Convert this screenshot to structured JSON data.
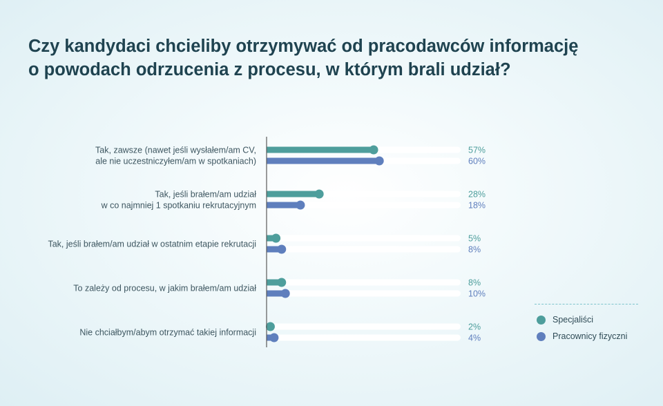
{
  "title_lines": [
    "Czy kandydaci chcieliby otrzymywać od pracodawców informację",
    "o powodach odrzucenia z procesu, w którym brali udział?"
  ],
  "colors": {
    "specjalisci": "#4e9e9c",
    "pracownicy": "#5f7fbd",
    "track": "#ffffff",
    "axis": "#5a5a5a"
  },
  "chart_data": {
    "type": "bar",
    "orientation": "horizontal",
    "style": "lollipop",
    "categories": [
      [
        "Tak, zawsze (nawet jeśli wysłałem/am CV,",
        "ale nie uczestniczyłem/am w spotkaniach)"
      ],
      [
        "Tak, jeśli brałem/am udział",
        "w co najmniej 1 spotkaniu rekrutacyjnym"
      ],
      [
        "Tak, jeśli brałem/am udział w ostatnim etapie rekrutacji"
      ],
      [
        "To zależy od procesu, w jakim brałem/am udział"
      ],
      [
        "Nie chciałbym/abym otrzymać takiej informacji"
      ]
    ],
    "series": [
      {
        "name": "Specjaliści",
        "values": [
          57,
          28,
          5,
          8,
          2
        ],
        "labels": [
          "57%",
          "28%",
          "5%",
          "8%",
          "2%"
        ]
      },
      {
        "name": "Pracownicy fizyczni",
        "values": [
          60,
          18,
          8,
          10,
          4
        ],
        "labels": [
          "60%",
          "18%",
          "8%",
          "10%",
          "4%"
        ]
      }
    ],
    "xlim": [
      0,
      100
    ],
    "legend_position": "bottom-right"
  },
  "legend": [
    {
      "label": "Specjaliści",
      "color_key": "specjalisci"
    },
    {
      "label": "Pracownicy fizyczni",
      "color_key": "pracownicy"
    }
  ]
}
